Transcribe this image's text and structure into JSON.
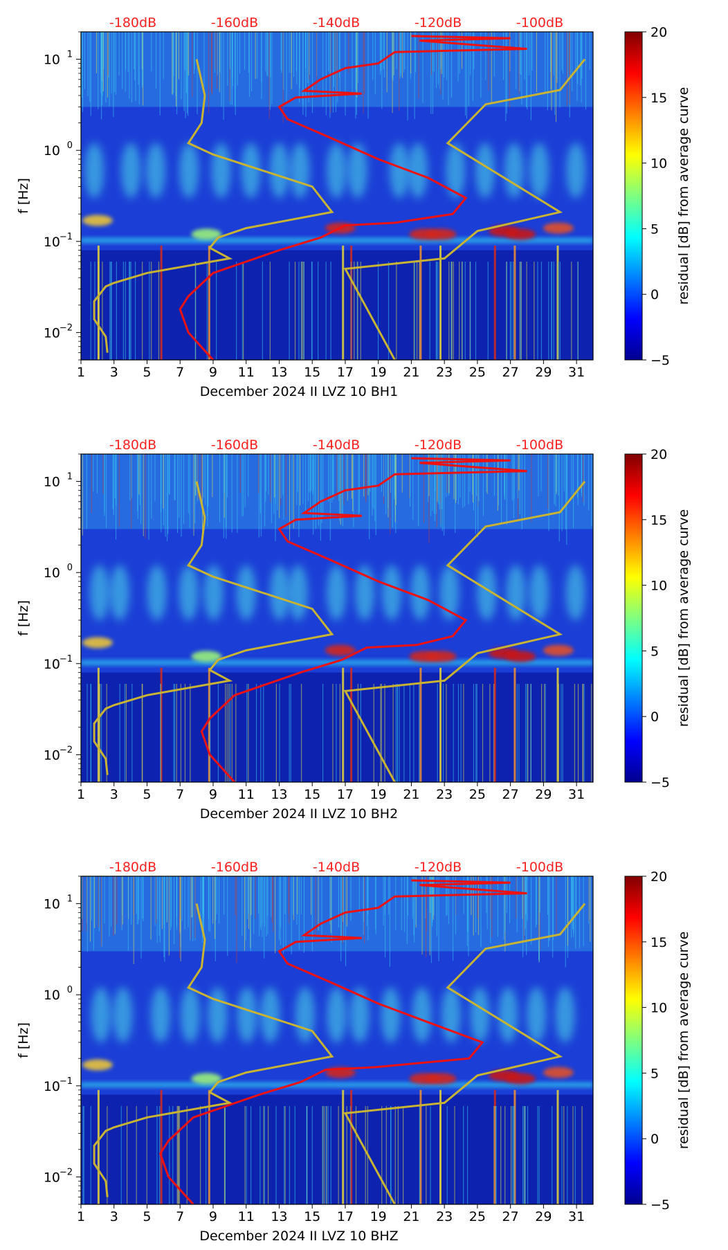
{
  "colors": {
    "db_labels": "#ff2020",
    "nlnm_curve": "#c8b432",
    "median_curve": "#ee1111",
    "background": "#1b3fd6"
  },
  "colorbar": {
    "label": "residual [dB] from average curve",
    "ticks": [
      "20",
      "15",
      "10",
      "5",
      "0",
      "−5"
    ],
    "range": [
      -5,
      20
    ]
  },
  "chart_data": [
    {
      "type": "heatmap",
      "title": "",
      "xlabel": "December 2024 II LVZ 10 BH1",
      "ylabel": "f [Hz]",
      "x_ticks": [
        "1",
        "3",
        "5",
        "7",
        "9",
        "11",
        "13",
        "15",
        "17",
        "19",
        "21",
        "23",
        "25",
        "27",
        "29",
        "31"
      ],
      "xlim": [
        1,
        32
      ],
      "y_ticks": [
        "10−2",
        "10−1",
        "100",
        "101"
      ],
      "ylim_hz": [
        0.005,
        20
      ],
      "y_scale": "log",
      "db_axis_labels": [
        "-180dB",
        "-160dB",
        "-140dB",
        "-120dB",
        "-100dB"
      ],
      "db_axis_values": [
        -180,
        -160,
        -140,
        -120,
        -100
      ],
      "series": [
        {
          "name": "noise model (NLNM/NHNM)",
          "color": "#c8b432"
        },
        {
          "name": "median PSD",
          "color": "#ee1111"
        }
      ],
      "notable_events_day": [
        2.0,
        5.8,
        8.7,
        16.8,
        17.3,
        21.5,
        22.7,
        26.0,
        27.2,
        29.8
      ]
    },
    {
      "type": "heatmap",
      "title": "",
      "xlabel": "December 2024 II LVZ 10 BH2",
      "ylabel": "f [Hz]",
      "x_ticks": [
        "1",
        "3",
        "5",
        "7",
        "9",
        "11",
        "13",
        "15",
        "17",
        "19",
        "21",
        "23",
        "25",
        "27",
        "29",
        "31"
      ],
      "xlim": [
        1,
        32
      ],
      "y_ticks": [
        "10−2",
        "10−1",
        "100",
        "101"
      ],
      "ylim_hz": [
        0.005,
        20
      ],
      "y_scale": "log",
      "db_axis_labels": [
        "-180dB",
        "-160dB",
        "-140dB",
        "-120dB",
        "-100dB"
      ],
      "db_axis_values": [
        -180,
        -160,
        -140,
        -120,
        -100
      ],
      "series": [
        {
          "name": "noise model (NLNM/NHNM)",
          "color": "#c8b432"
        },
        {
          "name": "median PSD",
          "color": "#ee1111"
        }
      ],
      "notable_events_day": [
        2.0,
        5.8,
        8.7,
        16.8,
        17.3,
        21.5,
        22.7,
        26.0,
        27.2,
        29.8
      ]
    },
    {
      "type": "heatmap",
      "title": "",
      "xlabel": "December 2024 II LVZ 10 BHZ",
      "ylabel": "f [Hz]",
      "x_ticks": [
        "1",
        "3",
        "5",
        "7",
        "9",
        "11",
        "13",
        "15",
        "17",
        "19",
        "21",
        "23",
        "25",
        "27",
        "29",
        "31"
      ],
      "xlim": [
        1,
        32
      ],
      "y_ticks": [
        "10−2",
        "10−1",
        "100",
        "101"
      ],
      "ylim_hz": [
        0.005,
        20
      ],
      "y_scale": "log",
      "db_axis_labels": [
        "-180dB",
        "-160dB",
        "-140dB",
        "-120dB",
        "-100dB"
      ],
      "db_axis_values": [
        -180,
        -160,
        -140,
        -120,
        -100
      ],
      "series": [
        {
          "name": "noise model (NLNM/NHNM)",
          "color": "#c8b432"
        },
        {
          "name": "median PSD",
          "color": "#ee1111"
        }
      ],
      "notable_events_day": [
        2.0,
        5.8,
        8.7,
        16.8,
        17.3,
        21.5,
        22.7,
        26.0,
        27.2,
        29.8
      ]
    }
  ]
}
